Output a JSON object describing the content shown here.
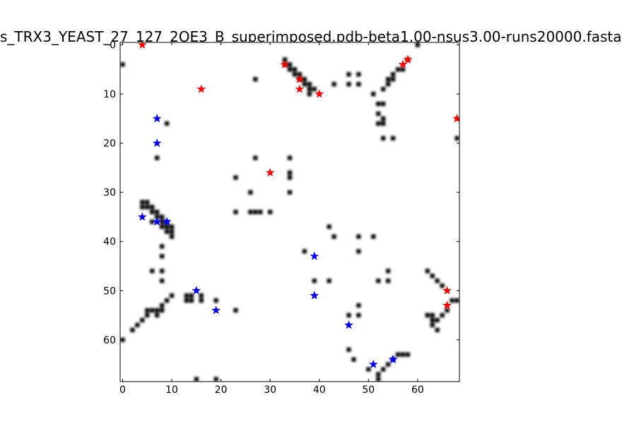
{
  "chart_data": {
    "type": "scatter",
    "title": "s_TRX3_YEAST_27_127_2OE3_B_superimposed.pdb-beta1.00-nsus3.00-runs20000.fasta",
    "xlim": [
      -0.5,
      68.5
    ],
    "ylim": [
      68.5,
      -0.5
    ],
    "y_axis_inverted": true,
    "xticks": [
      0,
      10,
      20,
      30,
      40,
      50,
      60
    ],
    "yticks": [
      0,
      10,
      20,
      30,
      40,
      50,
      60
    ],
    "grid": false,
    "legend": "none",
    "background_map": {
      "style": "grayscale contact map (black blurred dots on white)",
      "color": "#000000",
      "cells": [
        [
          60,
          0
        ],
        [
          0,
          4
        ],
        [
          33,
          3
        ],
        [
          33,
          4
        ],
        [
          34,
          4
        ],
        [
          34,
          5
        ],
        [
          35,
          5
        ],
        [
          35,
          6
        ],
        [
          36,
          6
        ],
        [
          36,
          7
        ],
        [
          37,
          7
        ],
        [
          37,
          8
        ],
        [
          38,
          8
        ],
        [
          38,
          9
        ],
        [
          39,
          9
        ],
        [
          38,
          10
        ],
        [
          27,
          7
        ],
        [
          43,
          8
        ],
        [
          46,
          6
        ],
        [
          46,
          8
        ],
        [
          48,
          6
        ],
        [
          48,
          8
        ],
        [
          51,
          10
        ],
        [
          52,
          12
        ],
        [
          53,
          12
        ],
        [
          52,
          14
        ],
        [
          53,
          15
        ],
        [
          52,
          16
        ],
        [
          53,
          16
        ],
        [
          53,
          19
        ],
        [
          55,
          19
        ],
        [
          55,
          6
        ],
        [
          56,
          5
        ],
        [
          57,
          5
        ],
        [
          55,
          7
        ],
        [
          54,
          7
        ],
        [
          54,
          8
        ],
        [
          53,
          9
        ],
        [
          58,
          3
        ],
        [
          68,
          19
        ],
        [
          9,
          16
        ],
        [
          7,
          23
        ],
        [
          27,
          23
        ],
        [
          23,
          27
        ],
        [
          26,
          30
        ],
        [
          26,
          34
        ],
        [
          27,
          34
        ],
        [
          28,
          34
        ],
        [
          30,
          34
        ],
        [
          23,
          34
        ],
        [
          34,
          23
        ],
        [
          34,
          26
        ],
        [
          34,
          27
        ],
        [
          34,
          30
        ],
        [
          4,
          32
        ],
        [
          5,
          32
        ],
        [
          4,
          33
        ],
        [
          5,
          33
        ],
        [
          6,
          33
        ],
        [
          6,
          34
        ],
        [
          7,
          34
        ],
        [
          7,
          35
        ],
        [
          8,
          35
        ],
        [
          8,
          36
        ],
        [
          9,
          36
        ],
        [
          9,
          37
        ],
        [
          10,
          37
        ],
        [
          10,
          38
        ],
        [
          9,
          38
        ],
        [
          10,
          39
        ],
        [
          6,
          36
        ],
        [
          8,
          37
        ],
        [
          8,
          41
        ],
        [
          8,
          43
        ],
        [
          6,
          46
        ],
        [
          8,
          46
        ],
        [
          8,
          48
        ],
        [
          10,
          51
        ],
        [
          13,
          51
        ],
        [
          14,
          51
        ],
        [
          14,
          52
        ],
        [
          13,
          52
        ],
        [
          16,
          51
        ],
        [
          16,
          52
        ],
        [
          19,
          52
        ],
        [
          23,
          54
        ],
        [
          5,
          54
        ],
        [
          6,
          54
        ],
        [
          5,
          55
        ],
        [
          7,
          54
        ],
        [
          8,
          53
        ],
        [
          9,
          52
        ],
        [
          8,
          54
        ],
        [
          7,
          55
        ],
        [
          4,
          56
        ],
        [
          3,
          57
        ],
        [
          2,
          58
        ],
        [
          0,
          60
        ],
        [
          42,
          37
        ],
        [
          43,
          39
        ],
        [
          37,
          42
        ],
        [
          48,
          39
        ],
        [
          51,
          39
        ],
        [
          48,
          42
        ],
        [
          39,
          48
        ],
        [
          42,
          48
        ],
        [
          54,
          46
        ],
        [
          54,
          48
        ],
        [
          52,
          48
        ],
        [
          48,
          53
        ],
        [
          46,
          55
        ],
        [
          48,
          55
        ],
        [
          62,
          46
        ],
        [
          63,
          47
        ],
        [
          64,
          48
        ],
        [
          65,
          49
        ],
        [
          62,
          55
        ],
        [
          63,
          55
        ],
        [
          63,
          56
        ],
        [
          64,
          56
        ],
        [
          63,
          57
        ],
        [
          64,
          58
        ],
        [
          65,
          55
        ],
        [
          66,
          54
        ],
        [
          67,
          52
        ],
        [
          68,
          52
        ],
        [
          56,
          63
        ],
        [
          57,
          63
        ],
        [
          58,
          63
        ],
        [
          55,
          64
        ],
        [
          54,
          65
        ],
        [
          53,
          66
        ],
        [
          52,
          67
        ],
        [
          52,
          68
        ],
        [
          46,
          62
        ],
        [
          47,
          64
        ],
        [
          50,
          66
        ],
        [
          15,
          68
        ],
        [
          19,
          68
        ]
      ]
    },
    "series": [
      {
        "color": "#ff0000",
        "marker": "star",
        "points": [
          [
            4,
            0
          ],
          [
            58,
            3
          ],
          [
            57,
            4
          ],
          [
            33,
            4
          ],
          [
            36,
            7
          ],
          [
            16,
            9
          ],
          [
            36,
            9
          ],
          [
            40,
            10
          ],
          [
            68,
            15
          ],
          [
            30,
            26
          ],
          [
            66,
            50
          ],
          [
            66,
            53
          ]
        ]
      },
      {
        "color": "#0000ff",
        "marker": "star",
        "points": [
          [
            7,
            15
          ],
          [
            7,
            20
          ],
          [
            4,
            35
          ],
          [
            7,
            36
          ],
          [
            9,
            36
          ],
          [
            39,
            43
          ],
          [
            15,
            50
          ],
          [
            39,
            51
          ],
          [
            19,
            54
          ],
          [
            46,
            57
          ],
          [
            55,
            64
          ],
          [
            51,
            65
          ]
        ]
      }
    ]
  }
}
